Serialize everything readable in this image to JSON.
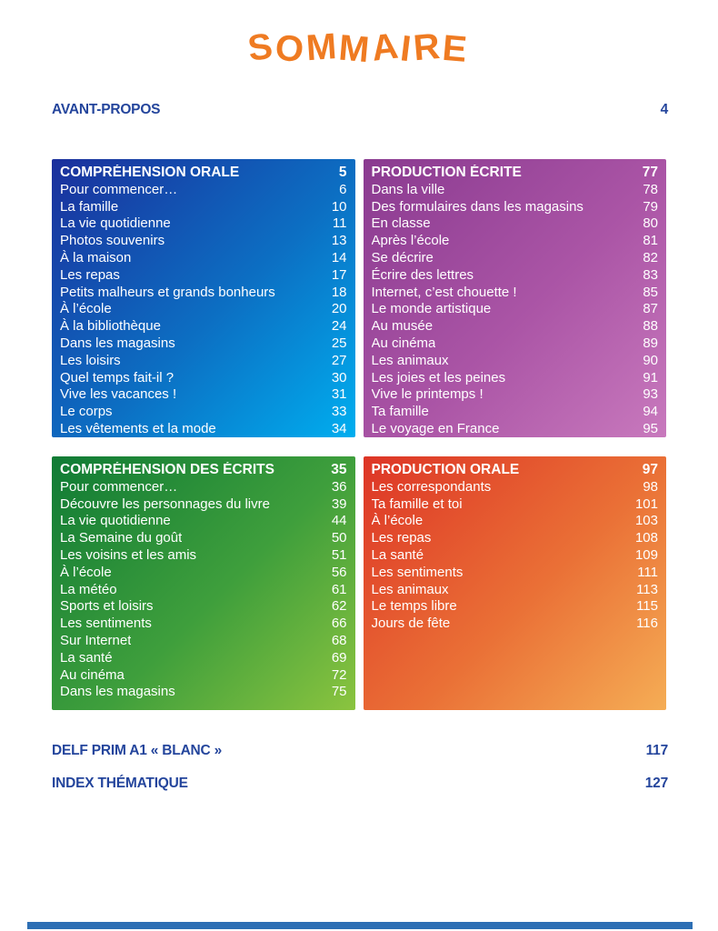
{
  "page": {
    "title": "SOMMAIRE",
    "colors": {
      "title_orange": "#ef7b22",
      "heading_blue": "#24459c",
      "footer_bar_blue": "#2d6fb4",
      "box_text": "#ffffff"
    }
  },
  "front_matter": [
    {
      "label": "AVANT-PROPOS",
      "page": "4"
    }
  ],
  "sections": [
    {
      "title": "COMPRÉHENSION ORALE",
      "page": "5",
      "gradient": [
        "#1b2f9c",
        "#0c6fc3",
        "#00aeef"
      ],
      "entries": [
        {
          "label": "Pour commencer…",
          "page": "6"
        },
        {
          "label": "La famille",
          "page": "10"
        },
        {
          "label": "La vie quotidienne",
          "page": "11"
        },
        {
          "label": "Photos souvenirs",
          "page": "13"
        },
        {
          "label": "À la maison",
          "page": "14"
        },
        {
          "label": "Les repas",
          "page": "17"
        },
        {
          "label": "Petits malheurs et grands bonheurs",
          "page": "18"
        },
        {
          "label": "À l’école",
          "page": "20"
        },
        {
          "label": "À la bibliothèque",
          "page": "24"
        },
        {
          "label": "Dans les magasins",
          "page": "25"
        },
        {
          "label": "Les loisirs",
          "page": "27"
        },
        {
          "label": "Quel temps fait-il ?",
          "page": "30"
        },
        {
          "label": "Vive les vacances !",
          "page": "31"
        },
        {
          "label": "Le corps",
          "page": "33"
        },
        {
          "label": "Les vêtements et la mode",
          "page": "34"
        }
      ]
    },
    {
      "title": "PRODUCTION ÉCRITE",
      "page": "77",
      "gradient": [
        "#8a3a90",
        "#ab55a6",
        "#c879bd"
      ],
      "entries": [
        {
          "label": "Dans la ville",
          "page": "78"
        },
        {
          "label": "Des formulaires dans les magasins",
          "page": "79"
        },
        {
          "label": "En classe",
          "page": "80"
        },
        {
          "label": "Après l’école",
          "page": "81"
        },
        {
          "label": "Se décrire",
          "page": "82"
        },
        {
          "label": "Écrire des lettres",
          "page": "83"
        },
        {
          "label": "Internet, c’est chouette !",
          "page": "85"
        },
        {
          "label": "Le monde artistique",
          "page": "87"
        },
        {
          "label": "Au musée",
          "page": "88"
        },
        {
          "label": "Au cinéma",
          "page": "89"
        },
        {
          "label": "Les animaux",
          "page": "90"
        },
        {
          "label": "Les joies et les peines",
          "page": "91"
        },
        {
          "label": "Vive le printemps !",
          "page": "93"
        },
        {
          "label": "Ta famille",
          "page": "94"
        },
        {
          "label": "Le voyage en France",
          "page": "95"
        }
      ]
    },
    {
      "title": "COMPRÉHENSION DES ÉCRITS",
      "page": "35",
      "gradient": [
        "#107b35",
        "#3f9f3c",
        "#8bc43f"
      ],
      "entries": [
        {
          "label": "Pour commencer…",
          "page": "36"
        },
        {
          "label": "Découvre les personnages du livre",
          "page": "39"
        },
        {
          "label": "La vie quotidienne",
          "page": "44"
        },
        {
          "label": "La Semaine du goût",
          "page": "50"
        },
        {
          "label": "Les voisins et les amis",
          "page": "51"
        },
        {
          "label": "À l’école",
          "page": "56"
        },
        {
          "label": "La météo",
          "page": "61"
        },
        {
          "label": "Sports et loisirs",
          "page": "62"
        },
        {
          "label": "Les sentiments",
          "page": "66"
        },
        {
          "label": "Sur Internet",
          "page": "68"
        },
        {
          "label": "La santé",
          "page": "69"
        },
        {
          "label": "Au cinéma",
          "page": "72"
        },
        {
          "label": "Dans les magasins",
          "page": "75"
        }
      ]
    },
    {
      "title": "PRODUCTION ORALE",
      "page": "97",
      "gradient": [
        "#dd3526",
        "#ea7036",
        "#f5ad55"
      ],
      "entries": [
        {
          "label": "Les correspondants",
          "page": "98"
        },
        {
          "label": "Ta famille et toi",
          "page": "101"
        },
        {
          "label": "À l’école",
          "page": "103"
        },
        {
          "label": "Les repas",
          "page": "108"
        },
        {
          "label": "La santé",
          "page": "109"
        },
        {
          "label": "Les sentiments",
          "page": "111"
        },
        {
          "label": "Les animaux",
          "page": "113"
        },
        {
          "label": "Le temps libre",
          "page": "115"
        },
        {
          "label": "Jours de fête",
          "page": "116"
        }
      ]
    }
  ],
  "back_matter": [
    {
      "label": "DELF PRIM A1 « BLANC »",
      "page": "117"
    },
    {
      "label": "INDEX THÉMATIQUE",
      "page": "127"
    }
  ]
}
